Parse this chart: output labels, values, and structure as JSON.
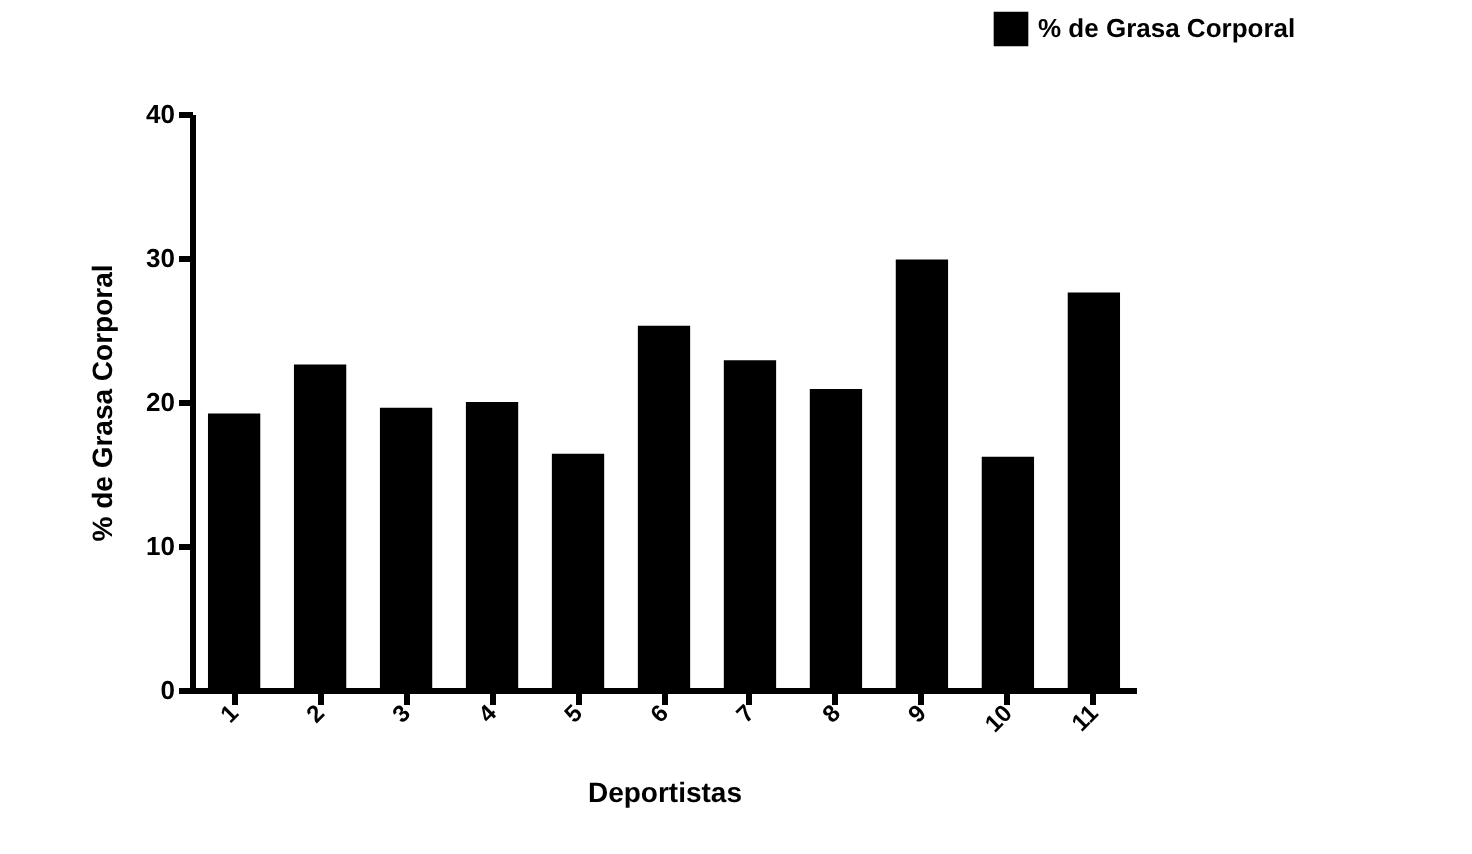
{
  "chart_data": {
    "type": "bar",
    "xlabel": "Deportistas",
    "ylabel": "% de Grasa Corporal",
    "categories": [
      "1",
      "2",
      "3",
      "4",
      "5",
      "6",
      "7",
      "8",
      "9",
      "10",
      "11"
    ],
    "series": [
      {
        "name": "% de Grasa Corporal",
        "color": "#000000",
        "values": [
          19.2,
          22.6,
          19.6,
          20.0,
          16.4,
          25.3,
          22.9,
          20.9,
          29.9,
          16.2,
          27.6
        ]
      }
    ],
    "ylim": [
      0,
      40
    ],
    "yticks": [
      0,
      10,
      20,
      30,
      40
    ],
    "grid": false,
    "legend": "top right"
  }
}
